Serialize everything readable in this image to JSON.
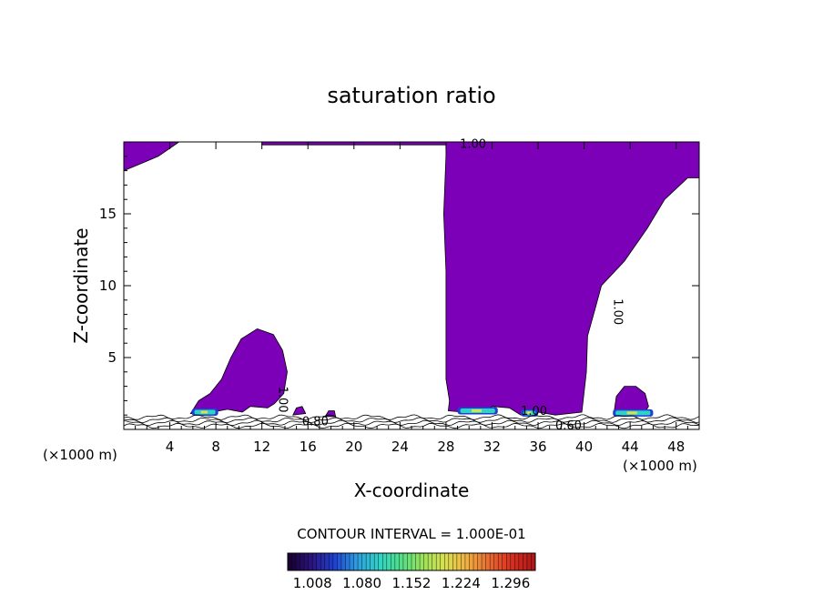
{
  "chart_data": {
    "type": "contour",
    "title": "saturation ratio",
    "xlabel": "X-coordinate",
    "ylabel": "Z-coordinate",
    "x_unit": "(×1000 m)",
    "x_unit_right": "(×1000 m)",
    "xlim": [
      0,
      50
    ],
    "ylim": [
      0,
      20
    ],
    "x_ticks": [
      4,
      8,
      12,
      16,
      20,
      24,
      28,
      32,
      36,
      40,
      44,
      48
    ],
    "y_ticks": [
      5,
      10,
      15
    ],
    "contour_labels": [
      "1.00",
      "1.00",
      "1.00",
      "1.00",
      "0.80",
      "0.60"
    ],
    "contour_interval_text": "CONTOUR INTERVAL = 1.000E-01",
    "colorbar_ticks": [
      "1.008",
      "1.080",
      "1.152",
      "1.224",
      "1.296"
    ],
    "colorbar_range": [
      0.972,
      1.332
    ],
    "colorbar_colors": [
      "#1a0033",
      "#2a1580",
      "#1f3fcf",
      "#2c9be0",
      "#2fd2c8",
      "#4fe08a",
      "#9be25a",
      "#d9e050",
      "#f0b040",
      "#e86a30",
      "#d83020",
      "#b01818"
    ],
    "fill_color_supersaturated": "#7b00b8",
    "regions": [
      {
        "name": "top-left-cap",
        "outline": [
          [
            0,
            20
          ],
          [
            4.8,
            20
          ],
          [
            3,
            19
          ],
          [
            1.5,
            18.5
          ],
          [
            0,
            18
          ]
        ]
      },
      {
        "name": "top-mid-strip",
        "outline": [
          [
            12,
            20
          ],
          [
            28,
            20
          ],
          [
            28,
            19.8
          ],
          [
            12,
            19.8
          ]
        ]
      },
      {
        "name": "main-plume",
        "outline": [
          [
            28,
            20
          ],
          [
            50,
            20
          ],
          [
            50,
            17.5
          ],
          [
            49,
            17.5
          ],
          [
            47,
            16
          ],
          [
            45.5,
            14
          ],
          [
            43.5,
            11.7
          ],
          [
            41.5,
            10
          ],
          [
            41,
            8.5
          ],
          [
            40.3,
            6.5
          ],
          [
            40.2,
            4
          ],
          [
            39.8,
            1.2
          ],
          [
            37.5,
            1
          ],
          [
            36,
            1.2
          ],
          [
            34.5,
            1
          ],
          [
            33.5,
            1.5
          ],
          [
            32,
            1.6
          ],
          [
            31.5,
            1.3
          ],
          [
            30.5,
            1.4
          ],
          [
            29.5,
            1.2
          ],
          [
            28.2,
            1.3
          ],
          [
            28.3,
            2
          ],
          [
            28,
            3.5
          ],
          [
            28,
            7
          ],
          [
            28,
            11
          ],
          [
            27.8,
            15
          ],
          [
            28,
            19
          ]
        ]
      },
      {
        "name": "left-bubble",
        "outline": [
          [
            5.8,
            1.1
          ],
          [
            6.5,
            2
          ],
          [
            7.5,
            2.5
          ],
          [
            8.5,
            3.5
          ],
          [
            9.3,
            5
          ],
          [
            10.2,
            6.3
          ],
          [
            11.6,
            7
          ],
          [
            13,
            6.6
          ],
          [
            13.8,
            5.5
          ],
          [
            14.2,
            4
          ],
          [
            13.9,
            2.5
          ],
          [
            13.1,
            1.8
          ],
          [
            12.5,
            1.5
          ],
          [
            11,
            1.6
          ],
          [
            10.3,
            1.2
          ],
          [
            9,
            1.4
          ],
          [
            7,
            1.1
          ]
        ]
      },
      {
        "name": "right-bubble",
        "outline": [
          [
            42.6,
            1.2
          ],
          [
            42.8,
            2.3
          ],
          [
            43.5,
            3
          ],
          [
            44.5,
            3
          ],
          [
            45.3,
            2.5
          ],
          [
            45.6,
            1.6
          ],
          [
            45.2,
            1.1
          ]
        ]
      },
      {
        "name": "small-blob-a",
        "outline": [
          [
            14.7,
            1
          ],
          [
            15,
            1.5
          ],
          [
            15.5,
            1.6
          ],
          [
            15.8,
            1.1
          ]
        ]
      },
      {
        "name": "small-blob-b",
        "outline": [
          [
            17.5,
            0.9
          ],
          [
            17.8,
            1.3
          ],
          [
            18.3,
            1.3
          ],
          [
            18.4,
            0.9
          ]
        ]
      }
    ],
    "hotspots": [
      {
        "x": [
          5.9,
          8.2
        ],
        "z": 1.2
      },
      {
        "x": [
          29.0,
          32.5
        ],
        "z": 1.3
      },
      {
        "x": [
          34.5,
          36.0
        ],
        "z": 1.15
      },
      {
        "x": [
          42.5,
          46.0
        ],
        "z": 1.15
      }
    ]
  }
}
